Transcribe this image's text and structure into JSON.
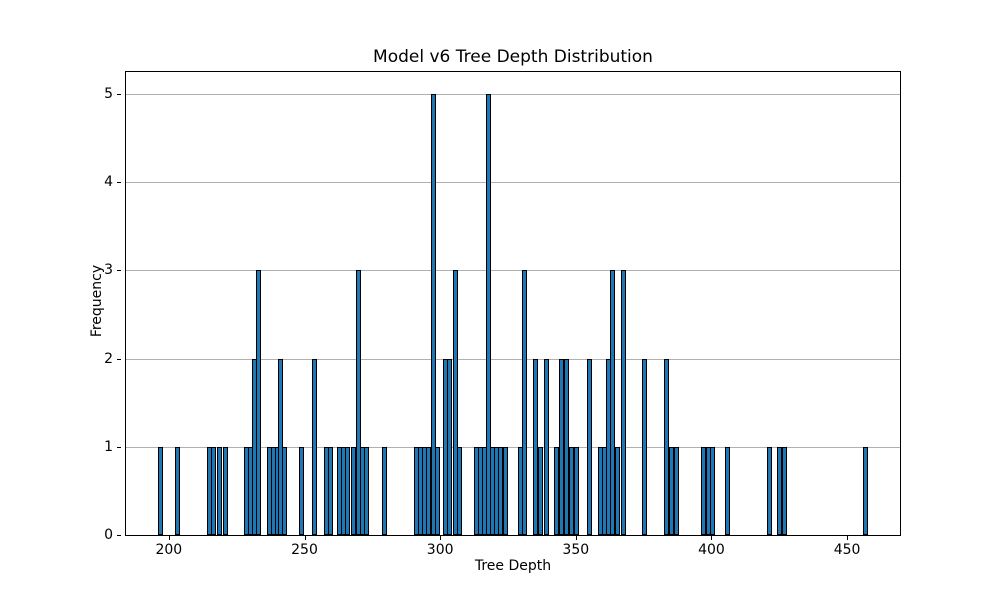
{
  "chart_data": {
    "type": "bar",
    "subtype": "histogram",
    "title": "Model v6 Tree Depth Distribution",
    "xlabel": "Tree Depth",
    "ylabel": "Frequency",
    "x_ticks": [
      200,
      250,
      300,
      350,
      400,
      450
    ],
    "y_ticks": [
      0,
      1,
      2,
      3,
      4,
      5
    ],
    "xlim": [
      184.2,
      469.5
    ],
    "ylim": [
      0,
      5.25
    ],
    "grid": "horizontal-only",
    "legend": "none",
    "bar_color": "#1f77b4",
    "bar_edge_color": "#000000",
    "grid_color": "#b0b0b0",
    "background_color": "#ffffff",
    "bars": [
      [
        197,
        1
      ],
      [
        203,
        1
      ],
      [
        215,
        1
      ],
      [
        216.5,
        1
      ],
      [
        218.5,
        1
      ],
      [
        221,
        1
      ],
      [
        228.5,
        1
      ],
      [
        230,
        1
      ],
      [
        231.5,
        2
      ],
      [
        233,
        3
      ],
      [
        237,
        1
      ],
      [
        238.5,
        1
      ],
      [
        240,
        1
      ],
      [
        241.3,
        2
      ],
      [
        242.7,
        1
      ],
      [
        249,
        1
      ],
      [
        253.5,
        2
      ],
      [
        258,
        1
      ],
      [
        259.5,
        1
      ],
      [
        263,
        1
      ],
      [
        264.5,
        1
      ],
      [
        266,
        1
      ],
      [
        268,
        1
      ],
      [
        269.8,
        3
      ],
      [
        271.3,
        1
      ],
      [
        273,
        1
      ],
      [
        279.5,
        1
      ],
      [
        291.3,
        1
      ],
      [
        292.8,
        1
      ],
      [
        294.3,
        1
      ],
      [
        295.8,
        1
      ],
      [
        297.5,
        5
      ],
      [
        299,
        1
      ],
      [
        301.8,
        2
      ],
      [
        303.3,
        2
      ],
      [
        305.7,
        3
      ],
      [
        307.2,
        1
      ],
      [
        313.5,
        1
      ],
      [
        315,
        1
      ],
      [
        316.5,
        1
      ],
      [
        318,
        5
      ],
      [
        319.4,
        1
      ],
      [
        320.9,
        1
      ],
      [
        322.4,
        1
      ],
      [
        324,
        1
      ],
      [
        329.5,
        1
      ],
      [
        331,
        3
      ],
      [
        335.3,
        2
      ],
      [
        337,
        1
      ],
      [
        339.3,
        2
      ],
      [
        343,
        1
      ],
      [
        344.9,
        2
      ],
      [
        346.4,
        2
      ],
      [
        348.5,
        1
      ],
      [
        350.3,
        1
      ],
      [
        354.9,
        2
      ],
      [
        359,
        1
      ],
      [
        360.5,
        1
      ],
      [
        362,
        2
      ],
      [
        363.6,
        3
      ],
      [
        365.3,
        1
      ],
      [
        367.4,
        3
      ],
      [
        375.2,
        2
      ],
      [
        383.6,
        2
      ],
      [
        385.2,
        1
      ],
      [
        387,
        1
      ],
      [
        397.2,
        1
      ],
      [
        398.8,
        1
      ],
      [
        400.4,
        1
      ],
      [
        405.8,
        1
      ],
      [
        421.4,
        1
      ],
      [
        425.1,
        1
      ],
      [
        426.9,
        1
      ],
      [
        456.8,
        1
      ]
    ]
  }
}
